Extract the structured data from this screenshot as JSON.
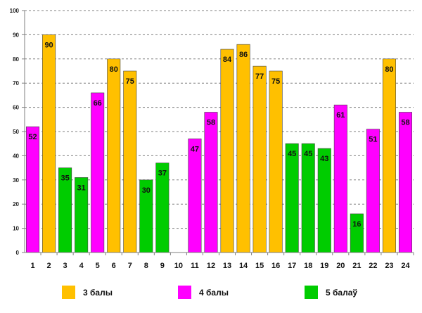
{
  "chart_data": {
    "type": "bar",
    "categories": [
      "1",
      "2",
      "3",
      "4",
      "5",
      "6",
      "7",
      "8",
      "9",
      "10",
      "11",
      "12",
      "13",
      "14",
      "15",
      "16",
      "17",
      "18",
      "19",
      "20",
      "21",
      "22",
      "23",
      "24"
    ],
    "values": [
      52,
      90,
      35,
      31,
      66,
      80,
      75,
      30,
      37,
      null,
      47,
      58,
      84,
      86,
      77,
      75,
      45,
      45,
      43,
      61,
      16,
      51,
      80,
      58
    ],
    "groups": [
      "4 балы",
      "3 балы",
      "5 балаў",
      "5 балаў",
      "4 балы",
      "3 балы",
      "3 балы",
      "5 балаў",
      "5 балаў",
      null,
      "4 балы",
      "4 балы",
      "3 балы",
      "3 балы",
      "3 балы",
      "3 балы",
      "5 балаў",
      "5 балаў",
      "5 балаў",
      "4 балы",
      "5 балаў",
      "4 балы",
      "3 балы",
      "4 балы"
    ],
    "ylim": [
      0,
      100
    ],
    "yticks": [
      0,
      10,
      20,
      30,
      40,
      50,
      60,
      70,
      80,
      90,
      100
    ],
    "grid": true,
    "title": "",
    "xlabel": "",
    "ylabel": "",
    "legend_position": "bottom"
  },
  "legend": [
    {
      "label": "3 балы",
      "color": "#FFC000"
    },
    {
      "label": "4 балы",
      "color": "#FF00FF"
    },
    {
      "label": "5 балаў",
      "color": "#00CC00"
    }
  ],
  "colors": {
    "3 балы": "#FFC000",
    "4 балы": "#FF00FF",
    "5 балаў": "#00CC00",
    "grid": "#7f7f7f",
    "axis": "#7f7f7f"
  }
}
